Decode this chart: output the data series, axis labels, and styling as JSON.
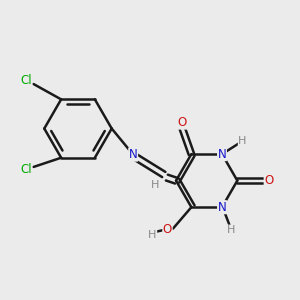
{
  "bg": "#ebebeb",
  "bond_color": "#1a1a1a",
  "atom_colors": {
    "H": "#888888",
    "N": "#1414cc",
    "O": "#cc1414",
    "Cl": "#00aa00"
  },
  "figsize": [
    3.0,
    3.0
  ],
  "dpi": 100
}
